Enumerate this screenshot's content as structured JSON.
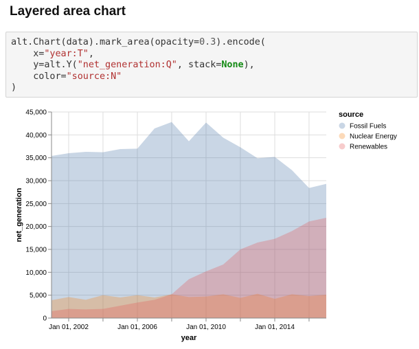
{
  "page": {
    "title": "Layered area chart"
  },
  "code": {
    "line1_pre": "alt.Chart(data).mark_area(opacity=",
    "line1_num": "0.3",
    "line1_post": ").encode(",
    "line2_pre": "    x=",
    "line2_str": "\"year:T\"",
    "line2_post": ",",
    "line3_pre": "    y=alt.Y(",
    "line3_str": "\"net_generation:Q\"",
    "line3_mid": ", stack=",
    "line3_kw": "None",
    "line3_post": "),",
    "line4_pre": "    color=",
    "line4_str": "\"source:N\"",
    "line5": ")"
  },
  "chart_data": {
    "type": "area",
    "xlabel": "year",
    "ylabel": "net_generation",
    "ylim": [
      0,
      45000
    ],
    "xlim": [
      "2001-01-01",
      "2017-01-01"
    ],
    "y_ticks": [
      0,
      5000,
      10000,
      15000,
      20000,
      25000,
      30000,
      35000,
      40000,
      45000
    ],
    "y_tick_labels": [
      "0",
      "5,000",
      "10,000",
      "15,000",
      "20,000",
      "25,000",
      "30,000",
      "35,000",
      "40,000",
      "45,000"
    ],
    "x_tick_labels": [
      "Jan 01, 2002",
      "Jan 01, 2006",
      "Jan 01, 2010",
      "Jan 01, 2014"
    ],
    "x_tick_years": [
      2002,
      2004,
      2006,
      2008,
      2010,
      2012,
      2014,
      2016
    ],
    "x_labeled_years": [
      2002,
      2006,
      2010,
      2014
    ],
    "grid": true,
    "opacity": 0.3,
    "stacked": false,
    "legend_title": "source",
    "legend_position": "right",
    "x": [
      "2001",
      "2002",
      "2003",
      "2004",
      "2005",
      "2006",
      "2007",
      "2008",
      "2009",
      "2010",
      "2011",
      "2012",
      "2013",
      "2014",
      "2015",
      "2016",
      "2017"
    ],
    "series": [
      {
        "name": "Fossil Fuels",
        "color": "#4c78a8",
        "values": [
          35400,
          36000,
          36300,
          36200,
          36900,
          37000,
          41400,
          42800,
          38600,
          42700,
          39400,
          37300,
          34900,
          35200,
          32300,
          28400,
          29300
        ]
      },
      {
        "name": "Nuclear Energy",
        "color": "#f58518",
        "values": [
          3900,
          4600,
          4000,
          5000,
          4500,
          5000,
          4500,
          5200,
          4600,
          4700,
          5200,
          4400,
          5300,
          4200,
          5200,
          4800,
          5100
        ]
      },
      {
        "name": "Renewables",
        "color": "#e45756",
        "values": [
          1500,
          2000,
          1900,
          2000,
          2700,
          3400,
          4000,
          5200,
          8500,
          10200,
          11700,
          15000,
          16500,
          17300,
          19000,
          21100,
          21900
        ]
      }
    ]
  }
}
